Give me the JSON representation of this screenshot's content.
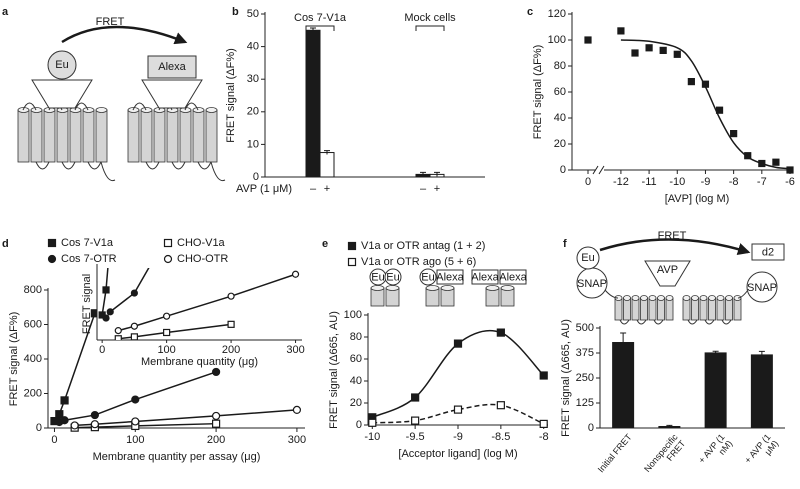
{
  "chart_data": [
    {
      "type": "diagram",
      "panel": "a",
      "labels": [
        "FRET",
        "Eu",
        "Alexa"
      ]
    },
    {
      "type": "bar",
      "panel": "b",
      "ylabel": "FRET signal (ΔF%)",
      "xlabel": "AVP (1 μM)",
      "categories": [
        "Cos 7-V1a",
        "Mock cells"
      ],
      "series": [
        {
          "name": "–",
          "color": "#1a1a1a",
          "values": [
            45,
            0.8
          ],
          "errors": [
            0.7,
            0.6
          ]
        },
        {
          "name": "+",
          "color": "#ffffff",
          "values": [
            7.5,
            0.8
          ],
          "errors": [
            0.6,
            0.6
          ]
        }
      ],
      "ylim": [
        0,
        50
      ],
      "yticks": [
        0,
        10,
        20,
        30,
        40,
        50
      ]
    },
    {
      "type": "scatter",
      "panel": "c",
      "ylabel": "FRET signal (ΔF%)",
      "xlabel": "[AVP] (log M)",
      "zero_label": "0",
      "zero_value": 100,
      "x": [
        -12,
        -11.5,
        -11,
        -10.5,
        -10,
        -9.5,
        -9,
        -8.5,
        -8,
        -7.5,
        -7,
        -6.5,
        -6
      ],
      "values": [
        107,
        90,
        94,
        92,
        89,
        68,
        66,
        46,
        28,
        11,
        5,
        6,
        0
      ],
      "color": "#1a1a1a",
      "fit": {
        "x": [
          -12,
          -11,
          -10,
          -9.5,
          -9,
          -8.5,
          -8,
          -7.5,
          -7,
          -6.5,
          -6
        ],
        "values": [
          100,
          99,
          94,
          84,
          64,
          40,
          21,
          10,
          5,
          2,
          1
        ]
      },
      "xlim": [
        -12.6,
        -6
      ],
      "xticks": [
        -12,
        -11,
        -10,
        -9,
        -8,
        -7,
        -6
      ],
      "ylim": [
        0,
        120
      ],
      "yticks": [
        0,
        20,
        40,
        60,
        80,
        100,
        120
      ]
    },
    {
      "type": "line",
      "panel": "d",
      "ylabel": "FRET signal (ΔF%)",
      "xlabel": "Membrane quantity per assay (μg)",
      "series": [
        {
          "name": "Cos 7-V1a",
          "color": "#1a1a1a",
          "marker": "square",
          "filled": true,
          "x": [
            0,
            6,
            12.5,
            50
          ],
          "values": [
            40,
            80,
            160,
            665
          ]
        },
        {
          "name": "Cos 7-OTR",
          "color": "#1a1a1a",
          "marker": "circle",
          "filled": true,
          "x": [
            6,
            12.5,
            50,
            100,
            200
          ],
          "values": [
            35,
            45,
            75,
            165,
            325
          ]
        },
        {
          "name": "CHO-V1a",
          "color": "#1a1a1a",
          "marker": "square",
          "filled": false,
          "x": [
            25,
            50,
            100,
            200
          ],
          "values": [
            2,
            5,
            12,
            25
          ]
        },
        {
          "name": "CHO-OTR",
          "color": "#1a1a1a",
          "marker": "circle",
          "filled": false,
          "x": [
            25,
            50,
            100,
            200,
            300
          ],
          "values": [
            15,
            22,
            38,
            70,
            105
          ]
        }
      ],
      "xlim": [
        -8,
        310
      ],
      "xticks": [
        0,
        100,
        200,
        300
      ],
      "ylim": [
        0,
        800
      ],
      "yticks": [
        0,
        200,
        400,
        600,
        800
      ],
      "inset": {
        "ylabel": "FRET signal",
        "xlabel": "Membrane quantity (μg)",
        "xlim": [
          -8,
          310
        ],
        "xticks": [
          0,
          100,
          200,
          300
        ],
        "ylim": [
          0,
          115
        ]
      }
    },
    {
      "type": "line",
      "panel": "e",
      "smooth": true,
      "ylabel": "FRET signal (Δ665, AU)",
      "xlabel": "[Acceptor ligand] (log M)",
      "labels": [
        "Eu",
        "Eu",
        "Eu",
        "Alexa",
        "Alexa",
        "Alexa"
      ],
      "x": [
        -10,
        -9.5,
        -9,
        -8.5,
        -8
      ],
      "series": [
        {
          "name": "V1a or OTR antag (1 + 2)",
          "color": "#1a1a1a",
          "marker": "square",
          "filled": true,
          "dash": false,
          "values": [
            7,
            25,
            74,
            84,
            45
          ]
        },
        {
          "name": "V1a or OTR ago (5 + 6)",
          "color": "#1a1a1a",
          "marker": "square",
          "filled": false,
          "dash": true,
          "values": [
            2,
            4,
            14,
            18,
            1
          ]
        }
      ],
      "xlim": [
        -10.05,
        -7.95
      ],
      "xticks": [
        -10,
        -9.5,
        -9,
        -8.5,
        -8
      ],
      "ylim": [
        0,
        100
      ],
      "yticks": [
        0,
        20,
        40,
        60,
        80,
        100
      ]
    },
    {
      "type": "bar",
      "panel": "f",
      "ylabel": "FRET signal (Δ665, AU)",
      "labels": [
        "FRET",
        "Eu",
        "SNAP",
        "AVP",
        "SNAP",
        "d2"
      ],
      "categories": [
        "Initial FRET",
        "Nonspecific FRET",
        "+ AVP (1 nM)",
        "+ AVP (1 μM)"
      ],
      "values": [
        430,
        10,
        378,
        368
      ],
      "errors": [
        45,
        3,
        6,
        15
      ],
      "color": "#1a1a1a",
      "ylim": [
        0,
        500
      ],
      "yticks": [
        0,
        125,
        250,
        375,
        500
      ]
    }
  ]
}
